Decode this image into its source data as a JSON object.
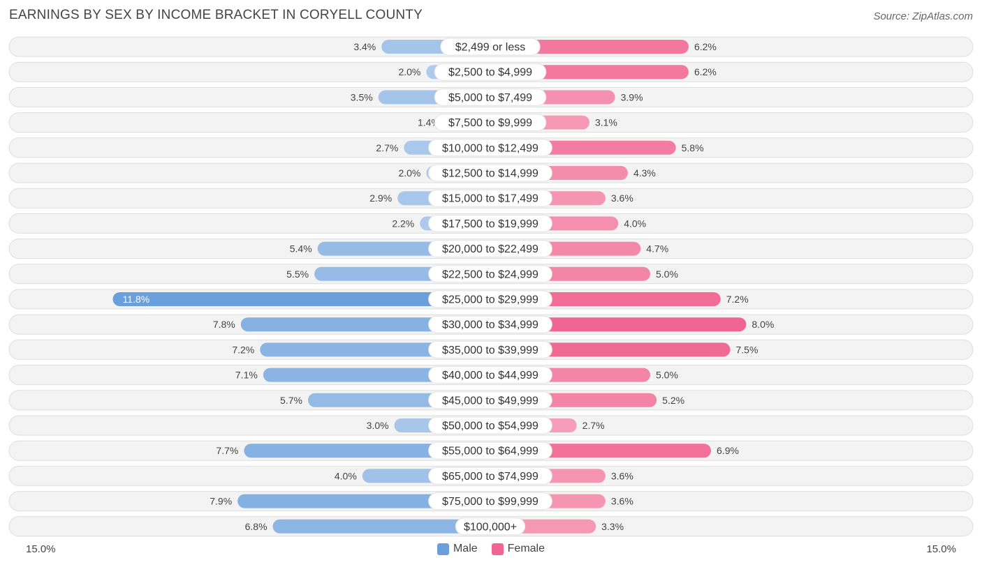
{
  "title": "EARNINGS BY SEX BY INCOME BRACKET IN CORYELL COUNTY",
  "source": "Source: ZipAtlas.com",
  "axis": {
    "left_label": "15.0%",
    "right_label": "15.0%"
  },
  "legend": {
    "male_label": "Male",
    "female_label": "Female",
    "male_color": "#6a9fdc",
    "female_color": "#f06592"
  },
  "chart_data": {
    "type": "bar",
    "orientation": "horizontal-diverging",
    "title": "EARNINGS BY SEX BY INCOME BRACKET IN CORYELL COUNTY",
    "xlim": [
      -15,
      15
    ],
    "categories": [
      "$2,499 or less",
      "$2,500 to $4,999",
      "$5,000 to $7,499",
      "$7,500 to $9,999",
      "$10,000 to $12,499",
      "$12,500 to $14,999",
      "$15,000 to $17,499",
      "$17,500 to $19,999",
      "$20,000 to $22,499",
      "$22,500 to $24,999",
      "$25,000 to $29,999",
      "$30,000 to $34,999",
      "$35,000 to $39,999",
      "$40,000 to $44,999",
      "$45,000 to $49,999",
      "$50,000 to $54,999",
      "$55,000 to $64,999",
      "$65,000 to $74,999",
      "$75,000 to $99,999",
      "$100,000+"
    ],
    "series": [
      {
        "name": "Male",
        "values": [
          3.4,
          2.0,
          3.5,
          1.4,
          2.7,
          2.0,
          2.9,
          2.2,
          5.4,
          5.5,
          11.8,
          7.8,
          7.2,
          7.1,
          5.7,
          3.0,
          7.7,
          4.0,
          7.9,
          6.8
        ],
        "labels": [
          "3.4%",
          "2.0%",
          "3.5%",
          "1.4%",
          "2.7%",
          "2.0%",
          "2.9%",
          "2.2%",
          "5.4%",
          "5.5%",
          "11.8%",
          "7.8%",
          "7.2%",
          "7.1%",
          "5.7%",
          "3.0%",
          "7.7%",
          "4.0%",
          "7.9%",
          "6.8%"
        ]
      },
      {
        "name": "Female",
        "values": [
          6.2,
          6.2,
          3.9,
          3.1,
          5.8,
          4.3,
          3.6,
          4.0,
          4.7,
          5.0,
          7.2,
          8.0,
          7.5,
          5.0,
          5.2,
          2.7,
          6.9,
          3.6,
          3.6,
          3.3
        ],
        "labels": [
          "6.2%",
          "6.2%",
          "3.9%",
          "3.1%",
          "5.8%",
          "4.3%",
          "3.6%",
          "4.0%",
          "4.7%",
          "5.0%",
          "7.2%",
          "8.0%",
          "7.5%",
          "5.0%",
          "5.2%",
          "2.7%",
          "6.9%",
          "3.6%",
          "3.6%",
          "3.3%"
        ]
      }
    ]
  }
}
